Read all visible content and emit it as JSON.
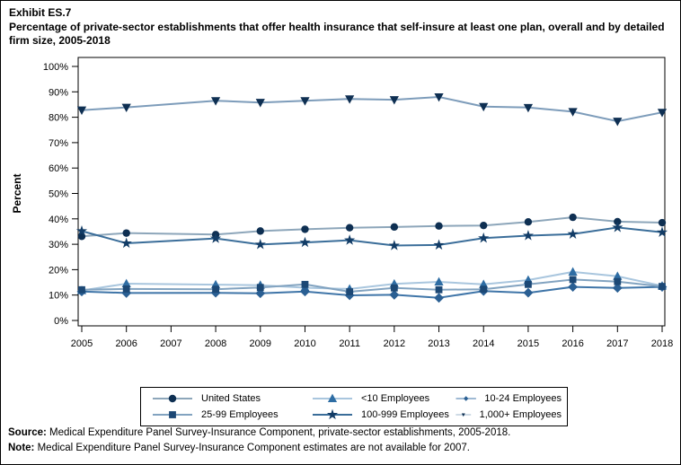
{
  "title": {
    "exhibit": "Exhibit ES.7",
    "subtitle": "Percentage of private-sector establishments that offer health insurance that self-insure at least one plan, overall and by detailed firm size, 2005-2018"
  },
  "chart_data": {
    "type": "line",
    "title": "Percentage of private-sector establishments that offer health insurance that self-insure at least one plan, overall and by detailed firm size, 2005-2018",
    "xlabel": "",
    "ylabel": "Percent",
    "ylim": [
      0,
      100
    ],
    "y_tick_step": 10,
    "y_tick_suffix": "%",
    "grid": false,
    "legend_position": "bottom",
    "x_axis_years": [
      2005,
      2006,
      2007,
      2008,
      2009,
      2010,
      2011,
      2012,
      2013,
      2014,
      2015,
      2016,
      2017,
      2018
    ],
    "x": [
      2005,
      2006,
      2008,
      2009,
      2010,
      2011,
      2012,
      2013,
      2014,
      2015,
      2016,
      2017,
      2018
    ],
    "missing_year": 2007,
    "series": [
      {
        "name": "United States",
        "marker": "circle",
        "marker_color": "#0e2f52",
        "line_color": "#8da6ba",
        "values": [
          33.1,
          34.4,
          33.8,
          35.2,
          35.9,
          36.5,
          36.8,
          37.2,
          37.4,
          38.8,
          40.6,
          38.9,
          38.5
        ]
      },
      {
        "name": "<10 Employees",
        "marker": "triangle-up",
        "marker_color": "#2e6da4",
        "line_color": "#a9c6de",
        "values": [
          11.8,
          14.5,
          14.1,
          13.9,
          12.9,
          12.4,
          14.4,
          15.2,
          14.2,
          15.9,
          19.1,
          17.4,
          13.6
        ]
      },
      {
        "name": "10-24 Employees",
        "marker": "diamond",
        "marker_color": "#2a5f93",
        "line_color": "#3f75a8",
        "values": [
          11.4,
          10.8,
          10.9,
          10.7,
          11.4,
          9.9,
          10.1,
          8.9,
          11.6,
          10.9,
          13.2,
          12.8,
          13.2
        ]
      },
      {
        "name": "25-99 Employees",
        "marker": "square",
        "marker_color": "#1c4875",
        "line_color": "#82a3c0",
        "values": [
          12.1,
          12.4,
          12.3,
          13.0,
          14.2,
          11.3,
          12.8,
          12.1,
          12.3,
          14.2,
          16.1,
          15.3,
          13.4
        ]
      },
      {
        "name": "100-999 Employees",
        "marker": "star",
        "marker_color": "#123c66",
        "line_color": "#3a6d99",
        "values": [
          35.2,
          30.4,
          32.3,
          29.9,
          30.7,
          31.6,
          29.5,
          29.7,
          32.4,
          33.4,
          34.0,
          36.6,
          34.7
        ]
      },
      {
        "name": "1,000+ Employees",
        "marker": "triangle-down",
        "marker_color": "#0e2f52",
        "line_color": "#7d9cba",
        "values": [
          82.8,
          83.9,
          86.5,
          85.8,
          86.5,
          87.2,
          86.9,
          88.0,
          84.2,
          83.8,
          82.2,
          78.4,
          81.9
        ]
      }
    ]
  },
  "footer": {
    "source_label": "Source:",
    "source_text": "Medical Expenditure Panel Survey-Insurance Component, private-sector establishments, 2005-2018.",
    "note_label": "Note:",
    "note_text": "Medical Expenditure Panel Survey-Insurance Component estimates are not available for 2007."
  }
}
